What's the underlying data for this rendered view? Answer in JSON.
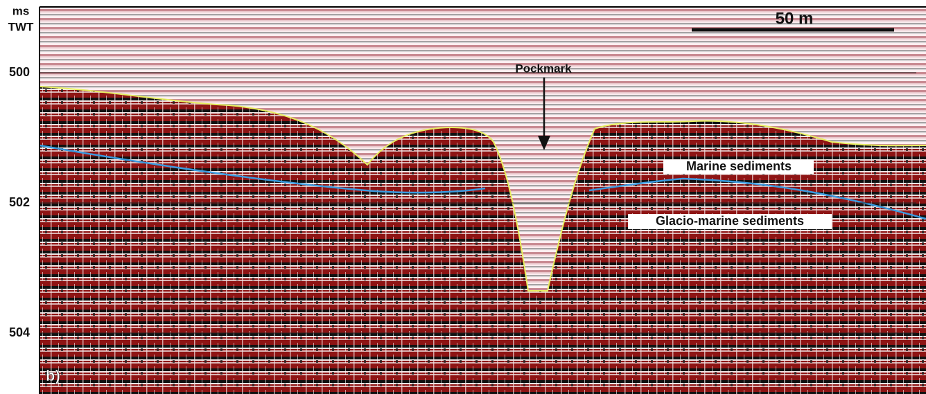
{
  "figure": {
    "panel_label": "b)",
    "axis": {
      "label_lines": [
        "ms",
        "TWT"
      ],
      "ticks": [
        "500",
        "502",
        "504"
      ]
    },
    "scale_bar": "50 m",
    "annotations": {
      "pockmark": "Pockmark",
      "upper_unit": "Marine sediments",
      "lower_unit": "Glacio-marine sediments"
    }
  }
}
